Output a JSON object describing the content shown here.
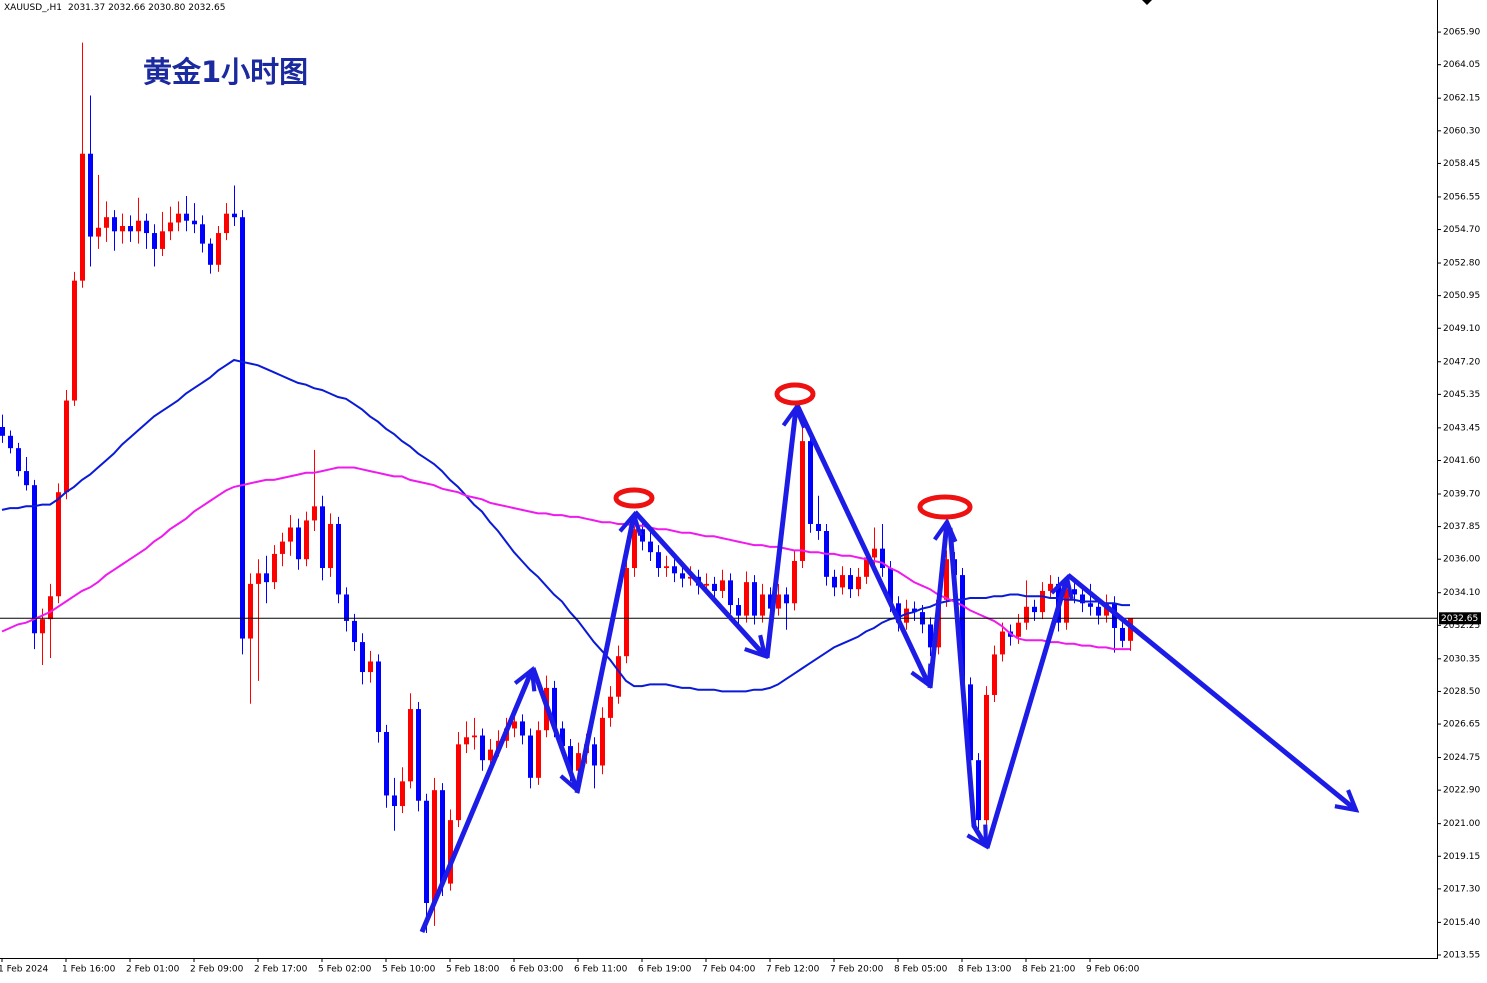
{
  "chart_data": {
    "type": "candlestick",
    "symbol": "XAUUSD_,H1",
    "quote": "2031.37 2032.66 2030.80 2032.65",
    "title": "黄金1小时图",
    "up_color": "#ff0000",
    "down_color": "#0000ff",
    "last_price": 2032.65,
    "ylim": [
      2013.38,
      2067.72
    ],
    "yticks": [
      {
        "value": 2065.9,
        "label": "2065.90"
      },
      2064.05,
      2062.15,
      {
        "value": 2060.3,
        "label": "2060.30"
      },
      2058.45,
      2056.55,
      {
        "value": 2054.7,
        "label": "2054.70"
      },
      {
        "value": 2052.8,
        "label": "2052.80"
      },
      2050.95,
      {
        "value": 2049.1,
        "label": "2049.10"
      },
      {
        "value": 2047.2,
        "label": "2047.20"
      },
      2045.35,
      2043.45,
      {
        "value": 2041.6,
        "label": "2041.60"
      },
      {
        "value": 2039.7,
        "label": "2039.70"
      },
      2037.85,
      {
        "value": 2036.0,
        "label": "2036.00"
      },
      {
        "value": 2034.1,
        "label": "2034.10"
      },
      2032.25,
      2030.35,
      {
        "value": 2028.5,
        "label": "2028.50"
      },
      2026.65,
      2024.75,
      {
        "value": 2022.9,
        "label": "2022.90"
      },
      {
        "value": 2021.0,
        "label": "2021.00"
      },
      2019.15,
      {
        "value": 2017.3,
        "label": "2017.30"
      },
      {
        "value": 2015.4,
        "label": "2015.40"
      },
      2013.55
    ],
    "categories": [
      "1 Feb 2024",
      null,
      null,
      null,
      null,
      null,
      null,
      null,
      "1 Feb 16:00",
      null,
      null,
      null,
      null,
      null,
      null,
      null,
      "2 Feb 01:00",
      null,
      null,
      null,
      null,
      null,
      null,
      null,
      "2 Feb 09:00",
      null,
      null,
      null,
      null,
      null,
      null,
      null,
      "2 Feb 17:00",
      null,
      null,
      null,
      null,
      null,
      null,
      null,
      "5 Feb 02:00",
      null,
      null,
      null,
      null,
      null,
      null,
      null,
      "5 Feb 10:00",
      null,
      null,
      null,
      null,
      null,
      null,
      null,
      "5 Feb 18:00",
      null,
      null,
      null,
      null,
      null,
      null,
      null,
      "6 Feb 03:00",
      null,
      null,
      null,
      null,
      null,
      null,
      null,
      "6 Feb 11:00",
      null,
      null,
      null,
      null,
      null,
      null,
      null,
      "6 Feb 19:00",
      null,
      null,
      null,
      null,
      null,
      null,
      null,
      "7 Feb 04:00",
      null,
      null,
      null,
      null,
      null,
      null,
      null,
      "7 Feb 12:00",
      null,
      null,
      null,
      null,
      null,
      null,
      null,
      "7 Feb 20:00",
      null,
      null,
      null,
      null,
      null,
      null,
      null,
      "8 Feb 05:00",
      null,
      null,
      null,
      null,
      null,
      null,
      null,
      "8 Feb 13:00",
      null,
      null,
      null,
      null,
      null,
      null,
      null,
      "8 Feb 21:00",
      null,
      null,
      null,
      null,
      null,
      null,
      null,
      "9 Feb 06:00",
      null,
      null,
      null,
      null,
      null
    ],
    "open": [
      2043.5,
      2043.0,
      2042.3,
      2041.0,
      2040.2,
      2031.8,
      2032.6,
      2033.9,
      2039.8,
      2045.0,
      2051.8,
      2059.0,
      2054.3,
      2054.8,
      2055.4,
      2054.6,
      2054.9,
      2054.6,
      2055.2,
      2054.5,
      2053.6,
      2054.6,
      2055.1,
      2055.6,
      2055.2,
      2055.0,
      2053.9,
      2052.7,
      2054.5,
      2055.6,
      2055.4,
      2031.5,
      2034.6,
      2035.2,
      2034.7,
      2036.3,
      2037.0,
      2037.8,
      2036.0,
      2038.2,
      2039.0,
      2035.5,
      2038.0,
      2034.0,
      2032.5,
      2031.3,
      2029.6,
      2030.2,
      2026.2,
      2022.6,
      2022.0,
      2023.4,
      2027.5,
      2022.3,
      2016.5,
      2022.9,
      2017.6,
      2021.2,
      2025.5,
      2025.9,
      2026.0,
      2024.6,
      2025.2,
      2025.7,
      2026.4,
      2026.8,
      2026.0,
      2023.6,
      2026.3,
      2028.7,
      2026.4,
      2025.4,
      2024.0,
      2025.0,
      2025.5,
      2024.3,
      2027.0,
      2028.2,
      2030.5,
      2035.5,
      2037.7,
      2037.0,
      2036.4,
      2035.5,
      2035.6,
      2035.2,
      2034.9,
      2035.0,
      2034.5,
      2034.6,
      2034.2,
      2034.8,
      2033.4,
      2032.8,
      2034.7,
      2032.8,
      2034.0,
      2033.2,
      2034.0,
      2033.5,
      2035.9,
      2042.7,
      2038.0,
      2037.6,
      2035.0,
      2034.4,
      2035.1,
      2034.3,
      2035.0,
      2036.1,
      2036.6,
      2035.5,
      2033.5,
      2032.4,
      2033.2,
      2033.0,
      2032.3,
      2031.0,
      2033.7,
      2036.0,
      2035.1,
      2028.9,
      2024.6,
      2021.2,
      2028.3,
      2030.6,
      2031.9,
      2031.6,
      2032.4,
      2033.3,
      2033.0,
      2034.2,
      2034.6,
      2032.4,
      2034.3,
      2034.0,
      2033.5,
      2033.3,
      2032.8,
      2033.5,
      2032.1,
      2031.37
    ],
    "high": [
      2044.2,
      2043.3,
      2042.6,
      2041.8,
      2040.5,
      2033.2,
      2034.6,
      2040.3,
      2045.6,
      2052.3,
      2065.3,
      2062.3,
      2057.8,
      2056.3,
      2055.8,
      2055.6,
      2055.5,
      2056.5,
      2055.6,
      2055.0,
      2055.7,
      2056.0,
      2056.3,
      2056.6,
      2056.2,
      2055.5,
      2054.2,
      2054.9,
      2056.2,
      2057.2,
      2055.8,
      2035.2,
      2036.0,
      2036.2,
      2036.8,
      2037.5,
      2038.5,
      2038.3,
      2038.7,
      2042.2,
      2039.6,
      2038.6,
      2038.4,
      2034.4,
      2032.9,
      2031.8,
      2030.8,
      2030.6,
      2026.6,
      2023.6,
      2024.2,
      2028.4,
      2027.9,
      2022.7,
      2023.6,
      2023.3,
      2021.8,
      2026.2,
      2026.8,
      2027.0,
      2026.4,
      2025.8,
      2026.3,
      2027.0,
      2027.4,
      2027.2,
      2026.4,
      2026.8,
      2029.4,
      2029.1,
      2026.8,
      2025.8,
      2025.6,
      2026.1,
      2025.9,
      2027.6,
      2028.8,
      2031.1,
      2036.1,
      2038.4,
      2038.3,
      2037.6,
      2036.8,
      2036.2,
      2036.0,
      2035.6,
      2035.6,
      2035.4,
      2035.2,
      2035.0,
      2035.4,
      2035.2,
      2033.8,
      2035.3,
      2035.1,
      2034.6,
      2034.4,
      2034.6,
      2034.4,
      2036.5,
      2043.6,
      2043.1,
      2039.6,
      2038.0,
      2035.4,
      2035.6,
      2035.5,
      2035.5,
      2036.6,
      2037.8,
      2038.0,
      2035.9,
      2033.9,
      2033.7,
      2033.6,
      2033.4,
      2032.7,
      2034.2,
      2036.5,
      2036.4,
      2035.5,
      2029.3,
      2025.0,
      2028.8,
      2031.1,
      2032.4,
      2032.3,
      2032.9,
      2034.8,
      2033.7,
      2034.7,
      2035.1,
      2035.0,
      2034.8,
      2034.7,
      2034.4,
      2034.6,
      2033.7,
      2034.0,
      2033.9,
      2032.5,
      2032.66
    ],
    "low": [
      2042.6,
      2042.0,
      2040.7,
      2039.9,
      2030.9,
      2030.0,
      2030.4,
      2033.5,
      2039.4,
      2044.7,
      2051.4,
      2052.6,
      2053.6,
      2054.0,
      2053.5,
      2053.9,
      2054.0,
      2053.9,
      2053.6,
      2052.6,
      2053.2,
      2054.1,
      2054.6,
      2054.6,
      2054.5,
      2053.4,
      2052.2,
      2052.3,
      2054.1,
      2054.9,
      2030.6,
      2027.8,
      2029.1,
      2033.5,
      2034.3,
      2035.6,
      2036.2,
      2035.4,
      2035.6,
      2037.6,
      2034.8,
      2035.0,
      2033.5,
      2031.9,
      2030.8,
      2028.9,
      2029.0,
      2025.6,
      2021.9,
      2020.6,
      2021.6,
      2023.0,
      2021.7,
      2014.8,
      2015.2,
      2016.9,
      2017.2,
      2020.8,
      2025.0,
      2025.2,
      2024.0,
      2024.1,
      2024.8,
      2025.3,
      2025.9,
      2025.5,
      2023.0,
      2023.2,
      2025.9,
      2025.9,
      2024.9,
      2023.4,
      2023.5,
      2024.4,
      2023.0,
      2023.8,
      2026.5,
      2027.8,
      2030.1,
      2035.0,
      2036.5,
      2035.9,
      2035.0,
      2035.0,
      2034.7,
      2034.4,
      2034.5,
      2034.0,
      2034.0,
      2033.7,
      2033.8,
      2032.9,
      2032.3,
      2032.4,
      2032.3,
      2032.4,
      2031.8,
      2032.8,
      2032.0,
      2033.1,
      2035.5,
      2037.5,
      2037.1,
      2034.5,
      2033.9,
      2034.0,
      2033.8,
      2033.9,
      2034.6,
      2035.7,
      2035.0,
      2033.0,
      2031.9,
      2032.0,
      2032.5,
      2031.8,
      2030.5,
      2030.6,
      2033.3,
      2034.6,
      2028.4,
      2024.1,
      2020.7,
      2020.8,
      2027.9,
      2030.2,
      2031.1,
      2031.2,
      2032.0,
      2032.5,
      2032.6,
      2033.8,
      2031.9,
      2032.0,
      2033.5,
      2033.0,
      2032.8,
      2032.3,
      2032.4,
      2030.7,
      2031.0,
      2030.8
    ],
    "close": [
      2043.0,
      2042.3,
      2041.0,
      2040.2,
      2031.8,
      2032.6,
      2033.9,
      2039.8,
      2045.0,
      2051.8,
      2059.0,
      2054.3,
      2054.8,
      2055.4,
      2054.6,
      2054.9,
      2054.6,
      2055.2,
      2054.5,
      2053.6,
      2054.6,
      2055.1,
      2055.6,
      2055.2,
      2055.0,
      2053.9,
      2052.7,
      2054.5,
      2055.6,
      2055.4,
      2031.5,
      2034.6,
      2035.2,
      2034.7,
      2036.3,
      2037.0,
      2037.8,
      2036.0,
      2038.2,
      2039.0,
      2035.5,
      2038.0,
      2034.0,
      2032.5,
      2031.3,
      2029.6,
      2030.2,
      2026.2,
      2022.6,
      2022.0,
      2023.4,
      2027.5,
      2022.3,
      2016.5,
      2022.9,
      2017.6,
      2021.2,
      2025.5,
      2025.9,
      2026.0,
      2024.6,
      2025.2,
      2025.7,
      2026.4,
      2026.8,
      2026.0,
      2023.6,
      2026.3,
      2028.7,
      2026.4,
      2025.4,
      2024.0,
      2025.0,
      2025.5,
      2024.3,
      2027.0,
      2028.2,
      2030.5,
      2035.5,
      2037.7,
      2037.0,
      2036.4,
      2035.5,
      2035.6,
      2035.2,
      2034.9,
      2035.0,
      2034.5,
      2034.6,
      2034.2,
      2034.8,
      2033.4,
      2032.8,
      2034.7,
      2032.8,
      2034.0,
      2033.2,
      2034.0,
      2033.5,
      2035.9,
      2042.7,
      2038.0,
      2037.6,
      2035.0,
      2034.4,
      2035.1,
      2034.3,
      2035.0,
      2036.1,
      2036.6,
      2035.5,
      2033.5,
      2032.4,
      2033.2,
      2033.0,
      2032.3,
      2031.0,
      2033.7,
      2036.0,
      2035.1,
      2028.9,
      2024.6,
      2021.2,
      2028.3,
      2030.6,
      2031.9,
      2031.6,
      2032.4,
      2033.3,
      2033.0,
      2034.2,
      2034.6,
      2032.4,
      2034.3,
      2034.0,
      2033.5,
      2033.3,
      2032.8,
      2033.5,
      2032.1,
      2031.37,
      2032.65
    ],
    "series": [
      {
        "color": "#0a1ad6",
        "values": [
          2038.8,
          2038.9,
          2038.9,
          2039.0,
          2039.0,
          2039.1,
          2039.1,
          2039.4,
          2039.8,
          2040.1,
          2040.5,
          2040.8,
          2041.2,
          2041.6,
          2042.0,
          2042.5,
          2042.9,
          2043.3,
          2043.7,
          2044.1,
          2044.4,
          2044.7,
          2045.0,
          2045.4,
          2045.7,
          2046.0,
          2046.3,
          2046.7,
          2047.0,
          2047.3,
          2047.2,
          2047.1,
          2047.0,
          2046.8,
          2046.6,
          2046.4,
          2046.2,
          2046.0,
          2045.9,
          2045.7,
          2045.6,
          2045.4,
          2045.2,
          2045.1,
          2044.8,
          2044.5,
          2044.1,
          2043.8,
          2043.4,
          2043.1,
          2042.7,
          2042.4,
          2042.0,
          2041.7,
          2041.4,
          2041.0,
          2040.5,
          2040.1,
          2039.6,
          2039.1,
          2038.7,
          2038.1,
          2037.6,
          2037.0,
          2036.4,
          2035.9,
          2035.4,
          2035.0,
          2034.5,
          2034.0,
          2033.6,
          2033.0,
          2032.5,
          2031.9,
          2031.3,
          2030.8,
          2030.3,
          2029.7,
          2029.1,
          2028.8,
          2028.8,
          2028.9,
          2028.9,
          2028.9,
          2028.8,
          2028.7,
          2028.7,
          2028.6,
          2028.6,
          2028.6,
          2028.5,
          2028.5,
          2028.5,
          2028.5,
          2028.6,
          2028.6,
          2028.7,
          2028.9,
          2029.2,
          2029.5,
          2029.8,
          2030.1,
          2030.4,
          2030.7,
          2031.0,
          2031.2,
          2031.4,
          2031.6,
          2031.9,
          2032.1,
          2032.4,
          2032.6,
          2032.7,
          2032.9,
          2033.0,
          2033.2,
          2033.3,
          2033.5,
          2033.6,
          2033.7,
          2033.7,
          2033.8,
          2033.8,
          2033.8,
          2033.9,
          2033.9,
          2034.0,
          2034.0,
          2033.9,
          2033.9,
          2033.9,
          2033.8,
          2033.8,
          2033.7,
          2033.7,
          2033.6,
          2033.6,
          2033.6,
          2033.5,
          2033.5,
          2033.4,
          2033.4
        ]
      },
      {
        "color": "#ee1aee",
        "values": [
          2031.9,
          2032.1,
          2032.3,
          2032.4,
          2032.6,
          2032.8,
          2033.0,
          2033.3,
          2033.6,
          2033.9,
          2034.2,
          2034.4,
          2034.7,
          2035.1,
          2035.4,
          2035.7,
          2036.0,
          2036.3,
          2036.6,
          2037.0,
          2037.3,
          2037.7,
          2038.0,
          2038.3,
          2038.7,
          2039.0,
          2039.3,
          2039.6,
          2039.9,
          2040.1,
          2040.2,
          2040.3,
          2040.4,
          2040.5,
          2040.5,
          2040.6,
          2040.7,
          2040.8,
          2040.9,
          2040.9,
          2041.0,
          2041.1,
          2041.2,
          2041.2,
          2041.2,
          2041.1,
          2041.0,
          2040.9,
          2040.8,
          2040.7,
          2040.7,
          2040.5,
          2040.4,
          2040.3,
          2040.2,
          2040.0,
          2039.9,
          2039.8,
          2039.6,
          2039.5,
          2039.4,
          2039.2,
          2039.1,
          2039.0,
          2038.9,
          2038.8,
          2038.7,
          2038.6,
          2038.6,
          2038.5,
          2038.5,
          2038.4,
          2038.4,
          2038.3,
          2038.2,
          2038.1,
          2038.1,
          2038.0,
          2038.0,
          2037.9,
          2037.9,
          2037.8,
          2037.7,
          2037.7,
          2037.6,
          2037.5,
          2037.5,
          2037.4,
          2037.3,
          2037.3,
          2037.2,
          2037.1,
          2037.0,
          2036.9,
          2036.8,
          2036.8,
          2036.7,
          2036.7,
          2036.6,
          2036.5,
          2036.5,
          2036.4,
          2036.4,
          2036.3,
          2036.3,
          2036.2,
          2036.2,
          2036.1,
          2036.0,
          2035.9,
          2035.8,
          2035.5,
          2035.3,
          2035.0,
          2034.7,
          2034.5,
          2034.3,
          2034.0,
          2033.8,
          2033.6,
          2033.4,
          2033.1,
          2032.9,
          2032.7,
          2032.5,
          2032.2,
          2031.8,
          2031.5,
          2031.4,
          2031.4,
          2031.4,
          2031.3,
          2031.3,
          2031.2,
          2031.2,
          2031.1,
          2031.1,
          2031.0,
          2031.0,
          2030.9,
          2030.9,
          2030.9
        ]
      }
    ]
  }
}
